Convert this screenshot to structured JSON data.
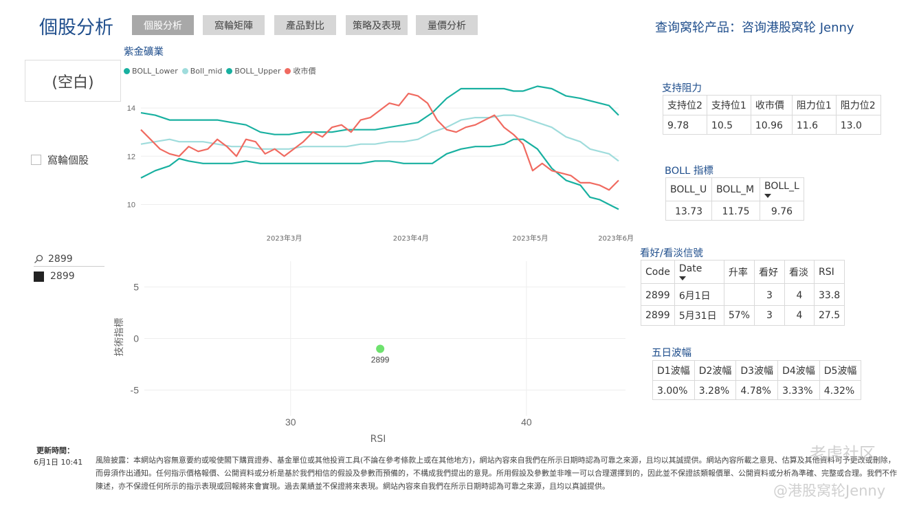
{
  "header": {
    "title": "個股分析",
    "tabs": [
      {
        "label": "個股分析",
        "active": true
      },
      {
        "label": "窩輪矩陣",
        "active": false
      },
      {
        "label": "產品對比",
        "active": false
      },
      {
        "label": "策略及表現",
        "active": false
      },
      {
        "label": "量價分析",
        "active": false
      }
    ],
    "query_label": "查询窝轮产品：咨询港股窝轮 Jenny"
  },
  "left_panel": {
    "blank_card": "(空白)",
    "warrant_checkbox_label": "窩輪個股",
    "search_value": "2899",
    "slicer_item": "2899"
  },
  "boll_chart": {
    "stock_name": "紫金礦業",
    "legend": [
      {
        "name": "BOLL_Lower",
        "color": "#18b0a0"
      },
      {
        "name": "Boll_mid",
        "color": "#9fdcdc"
      },
      {
        "name": "BOLL_Upper",
        "color": "#18b0a0"
      },
      {
        "name": "收市價",
        "color": "#f06a60"
      }
    ]
  },
  "scatter_chart": {
    "ylabel": "技術指標",
    "xlabel": "RSI",
    "point_label": "2899",
    "point_color": "#6ee26e"
  },
  "chart_data": [
    {
      "type": "line",
      "title": "紫金礦業",
      "x_ticks": [
        "2023年3月",
        "2023年4月",
        "2023年5月",
        "2023年6月"
      ],
      "y_ticks": [
        10,
        12,
        14
      ],
      "ylim": [
        9.5,
        15.2
      ],
      "xlim": [
        0,
        100
      ],
      "grid": "horizontal",
      "legend_position": "top-left",
      "series": [
        {
          "name": "BOLL_Lower",
          "color": "#18b0a0",
          "x": [
            0,
            3,
            6,
            8,
            10,
            13,
            16,
            19,
            22,
            25,
            28,
            31,
            34,
            37,
            40,
            43,
            46,
            49,
            52,
            55,
            58,
            61,
            64,
            67,
            70,
            73,
            76,
            78,
            80,
            83,
            86,
            89,
            92,
            94,
            96,
            98,
            100
          ],
          "y": [
            11.1,
            11.4,
            11.6,
            11.9,
            11.8,
            11.7,
            11.7,
            11.7,
            11.8,
            11.7,
            11.7,
            11.7,
            11.7,
            11.7,
            11.7,
            11.7,
            11.7,
            11.8,
            11.8,
            11.7,
            11.7,
            11.7,
            12.1,
            12.3,
            12.4,
            12.4,
            12.5,
            12.7,
            12.7,
            12.3,
            11.5,
            11.0,
            10.8,
            10.3,
            10.2,
            10.0,
            9.8
          ]
        },
        {
          "name": "Boll_mid",
          "color": "#9fdcdc",
          "x": [
            0,
            3,
            6,
            8,
            10,
            13,
            16,
            19,
            22,
            25,
            28,
            31,
            34,
            37,
            40,
            43,
            46,
            49,
            52,
            55,
            58,
            61,
            64,
            67,
            70,
            73,
            76,
            78,
            80,
            83,
            86,
            89,
            92,
            94,
            96,
            98,
            100
          ],
          "y": [
            12.5,
            12.6,
            12.7,
            12.6,
            12.6,
            12.6,
            12.5,
            12.4,
            12.4,
            12.3,
            12.3,
            12.3,
            12.4,
            12.4,
            12.4,
            12.4,
            12.5,
            12.5,
            12.6,
            12.6,
            12.7,
            13.0,
            13.2,
            13.5,
            13.6,
            13.6,
            13.7,
            13.7,
            13.6,
            13.4,
            13.2,
            12.8,
            12.6,
            12.3,
            12.2,
            12.1,
            11.8
          ]
        },
        {
          "name": "BOLL_Upper",
          "color": "#18b0a0",
          "x": [
            0,
            3,
            6,
            8,
            10,
            13,
            16,
            19,
            22,
            25,
            28,
            31,
            34,
            37,
            40,
            43,
            46,
            49,
            52,
            55,
            58,
            61,
            64,
            67,
            70,
            73,
            76,
            78,
            80,
            83,
            86,
            89,
            92,
            94,
            96,
            98,
            100
          ],
          "y": [
            13.8,
            13.7,
            13.5,
            13.5,
            13.5,
            13.5,
            13.5,
            13.4,
            13.3,
            13.0,
            12.9,
            12.9,
            13.0,
            13.0,
            13.0,
            13.1,
            13.1,
            13.1,
            13.2,
            13.3,
            13.4,
            13.8,
            14.4,
            14.8,
            14.8,
            14.8,
            14.8,
            14.7,
            14.7,
            14.9,
            14.8,
            14.5,
            14.4,
            14.3,
            14.2,
            14.1,
            13.7
          ]
        },
        {
          "name": "收市價",
          "color": "#f06a60",
          "x": [
            0,
            2,
            4,
            6,
            8,
            10,
            12,
            14,
            16,
            18,
            20,
            22,
            24,
            26,
            28,
            30,
            32,
            34,
            36,
            38,
            40,
            42,
            44,
            46,
            48,
            50,
            52,
            54,
            56,
            58,
            60,
            62,
            64,
            66,
            68,
            70,
            72,
            74,
            76,
            78,
            80,
            82,
            84,
            86,
            88,
            90,
            92,
            94,
            96,
            98,
            100
          ],
          "y": [
            13.1,
            12.7,
            12.3,
            12.1,
            12.0,
            12.4,
            12.2,
            12.3,
            12.7,
            12.4,
            12.0,
            12.7,
            12.6,
            12.1,
            12.3,
            12.0,
            12.3,
            12.6,
            13.0,
            12.8,
            13.2,
            13.3,
            13.0,
            13.5,
            13.6,
            13.9,
            14.2,
            14.1,
            14.6,
            14.5,
            14.2,
            13.5,
            13.1,
            13.0,
            13.2,
            13.3,
            13.5,
            13.7,
            13.2,
            12.9,
            12.5,
            11.4,
            11.7,
            11.4,
            11.3,
            11.2,
            10.9,
            10.9,
            10.8,
            10.6,
            11.0
          ]
        }
      ]
    },
    {
      "type": "scatter",
      "xlabel": "RSI",
      "ylabel": "技術指標",
      "x_ticks": [
        30,
        40
      ],
      "y_ticks": [
        5,
        0,
        -5
      ],
      "xlim": [
        23.8,
        44.2
      ],
      "ylim": [
        -7.5,
        7.5
      ],
      "grid": "both",
      "points": [
        {
          "label": "2899",
          "x": 33.8,
          "y": -1.0
        }
      ]
    }
  ],
  "support_resistance": {
    "title": "支持阻力",
    "headers": [
      "支持位2",
      "支持位1",
      "收市價",
      "阻力位1",
      "阻力位2"
    ],
    "rows": [
      [
        "9.78",
        "10.5",
        "10.96",
        "11.6",
        "13.0"
      ]
    ]
  },
  "boll_indicator": {
    "title": "BOLL 指標",
    "headers": [
      "BOLL_U",
      "BOLL_M",
      "BOLL_L"
    ],
    "rows": [
      [
        "13.73",
        "11.75",
        "9.76"
      ]
    ]
  },
  "signals": {
    "title": "看好/看淡信號",
    "headers": [
      "Code",
      "Date",
      "升率",
      "看好",
      "看淡",
      "RSI"
    ],
    "rows": [
      [
        "2899",
        "6月1日",
        "",
        "3",
        "4",
        "33.8"
      ],
      [
        "2899",
        "5月31日",
        "57%",
        "3",
        "4",
        "27.5"
      ]
    ]
  },
  "five_day": {
    "title": "五日波幅",
    "headers": [
      "D1波幅",
      "D2波幅",
      "D3波幅",
      "D4波幅",
      "D5波幅"
    ],
    "rows": [
      [
        "3.00%",
        "3.28%",
        "4.78%",
        "3.33%",
        "4.32%"
      ]
    ]
  },
  "footer": {
    "update_label": "更新時間：",
    "update_time": "6月1日 10:41",
    "disclaimer": "風險披露：本網站內容無意要約或唆使閣下購買證券、基金單位或其他投資工具(不論在參考條款上或在其他地方)，網站內容來自我們在所示日期時認為可靠之來源，且均以其誠提供。網站內容所載之意見、估算及其他資料可予更改或刪除，而毋須作出通知。任何指示價格報價、公開資料或分析是基於我們相信的假設及參數而預備的，不構成我們提出的意見。所用假設及參數並非唯一可以合理選擇到的，因此並不保證該類報價單、公開資料或分析為準確、完整或合理。我們不作陳述，亦不保證任何所示的指示表現或回報將來會實現。過去業績並不保證將來表現。網站內容來自我們在所示日期時認為可靠之來源，且均以真誠提供。",
    "watermark_1": "老虎社区",
    "watermark_2": "@港股窝轮Jenny"
  }
}
